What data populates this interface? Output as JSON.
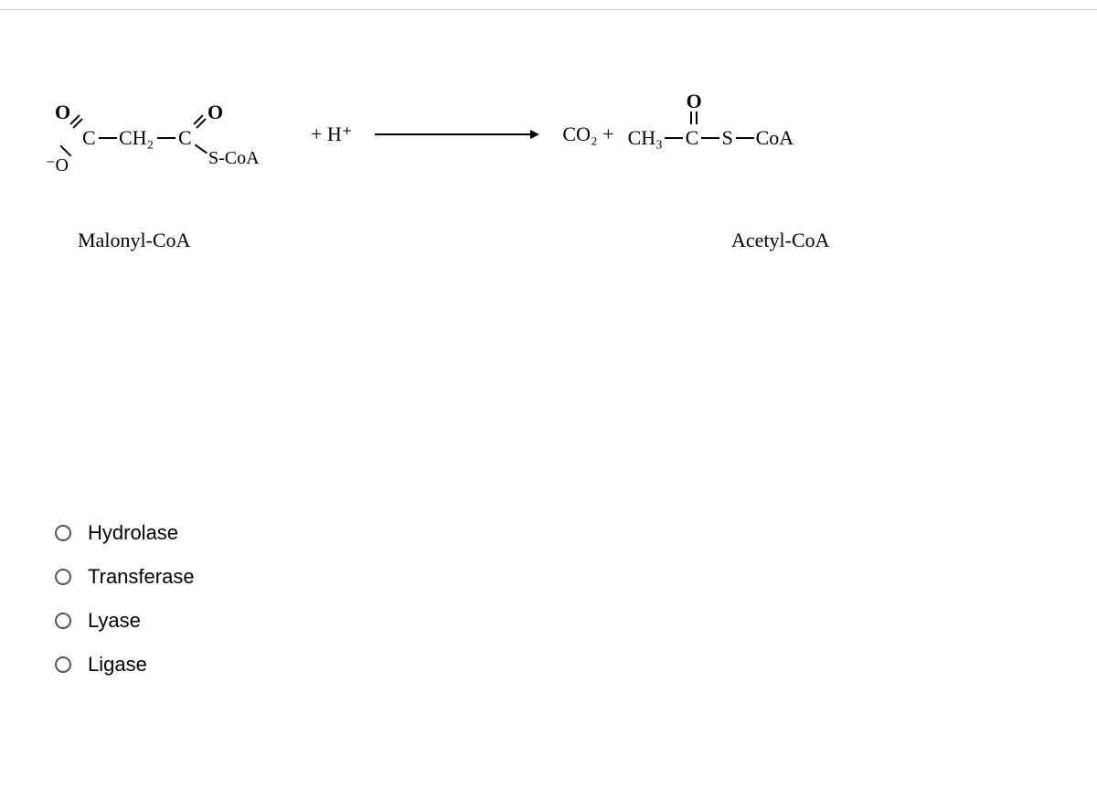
{
  "reaction": {
    "reactant": {
      "name": "Malonyl-CoA",
      "atoms": {
        "o1": "O",
        "c1": "C",
        "o_neg": "⁻O",
        "ch2": "CH₂",
        "c2": "C",
        "o2": "O",
        "scoa": "S-CoA"
      }
    },
    "plus_h": "+  H⁺",
    "products": {
      "co2": "CO₂  +",
      "acetyl": {
        "name": "Acetyl-CoA",
        "atoms": {
          "ch3": "CH₃",
          "c": "C",
          "o": "O",
          "s": "S",
          "coa": "CoA"
        }
      }
    }
  },
  "options": [
    {
      "label": "Hydrolase"
    },
    {
      "label": "Transferase"
    },
    {
      "label": "Lyase"
    },
    {
      "label": "Ligase"
    }
  ],
  "colors": {
    "background": "#ffffff",
    "text": "#000000",
    "border": "#d0d0d0",
    "radio_border": "#555555"
  },
  "fonts": {
    "chemical": "Times New Roman",
    "chemical_size": 22,
    "option": "Arial",
    "option_size": 22
  }
}
